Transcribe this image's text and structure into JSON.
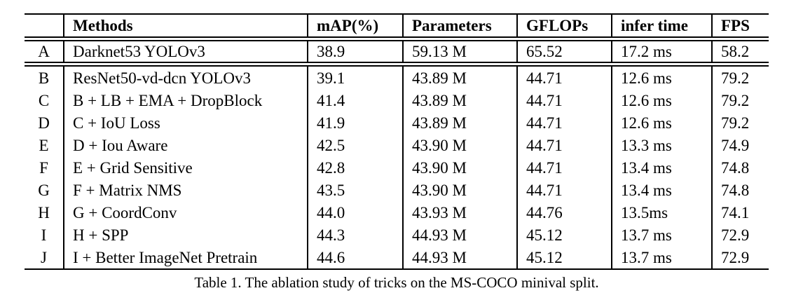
{
  "table": {
    "caption": "Table 1. The ablation study of tricks on the MS-COCO minival split.",
    "headers": {
      "index": "",
      "methods": "Methods",
      "map": "mAP(%)",
      "parameters": "Parameters",
      "gflops": "GFLOPs",
      "infer_time": "infer time",
      "fps": "FPS"
    },
    "rows": [
      {
        "id": "A",
        "method": "Darknet53 YOLOv3",
        "map": "38.9",
        "params": "59.13 M",
        "gflops": "65.52",
        "infer_time": "17.2 ms",
        "fps": "58.2"
      },
      {
        "id": "B",
        "method": "ResNet50-vd-dcn YOLOv3",
        "map": "39.1",
        "params": "43.89 M",
        "gflops": "44.71",
        "infer_time": "12.6 ms",
        "fps": "79.2"
      },
      {
        "id": "C",
        "method": "B + LB + EMA + DropBlock",
        "map": "41.4",
        "params": "43.89 M",
        "gflops": "44.71",
        "infer_time": "12.6 ms",
        "fps": "79.2"
      },
      {
        "id": "D",
        "method": "C + IoU Loss",
        "map": "41.9",
        "params": "43.89 M",
        "gflops": "44.71",
        "infer_time": "12.6 ms",
        "fps": "79.2"
      },
      {
        "id": "E",
        "method": "D + Iou Aware",
        "map": "42.5",
        "params": "43.90 M",
        "gflops": "44.71",
        "infer_time": "13.3 ms",
        "fps": "74.9"
      },
      {
        "id": "F",
        "method": "E + Grid Sensitive",
        "map": "42.8",
        "params": "43.90 M",
        "gflops": "44.71",
        "infer_time": "13.4 ms",
        "fps": "74.8"
      },
      {
        "id": "G",
        "method": "F + Matrix NMS",
        "map": "43.5",
        "params": "43.90 M",
        "gflops": "44.71",
        "infer_time": "13.4 ms",
        "fps": "74.8"
      },
      {
        "id": "H",
        "method": "G + CoordConv",
        "map": "44.0",
        "params": "43.93 M",
        "gflops": "44.76",
        "infer_time": "13.5ms",
        "fps": "74.1"
      },
      {
        "id": "I",
        "method": "H + SPP",
        "map": "44.3",
        "params": "44.93 M",
        "gflops": "45.12",
        "infer_time": "13.7 ms",
        "fps": "72.9"
      },
      {
        "id": "J",
        "method": "I + Better ImageNet Pretrain",
        "map": "44.6",
        "params": "44.93 M",
        "gflops": "45.12",
        "infer_time": "13.7 ms",
        "fps": "72.9"
      }
    ]
  },
  "colors": {
    "background": "#ffffff",
    "text": "#000000",
    "line": "#000000"
  }
}
